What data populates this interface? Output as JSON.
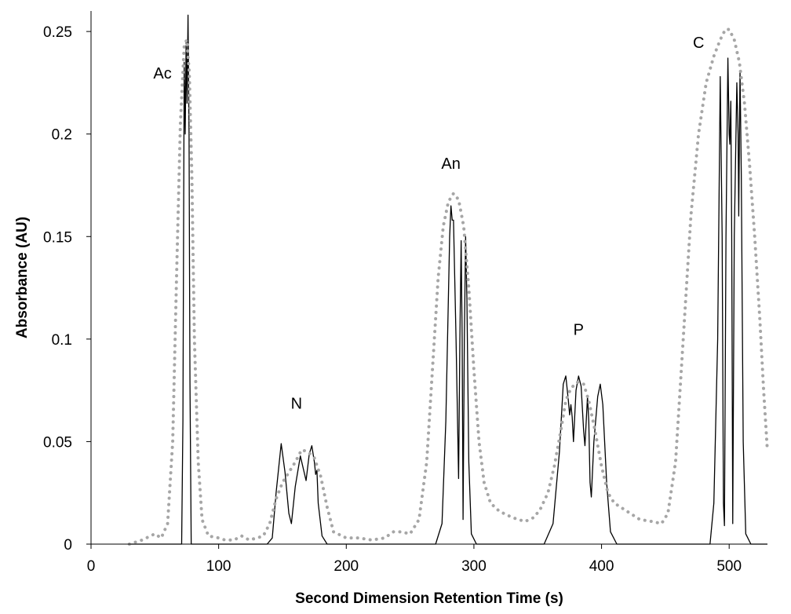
{
  "chart_data": {
    "type": "line",
    "title": "",
    "xlabel": "Second Dimension Retention Time (s)",
    "ylabel": "Absorbance (AU)",
    "xlim": [
      0,
      530
    ],
    "ylim": [
      0,
      0.26
    ],
    "x_ticks": [
      0,
      100,
      200,
      300,
      400,
      500
    ],
    "x_tick_labels": [
      "0",
      "100",
      "200",
      "300",
      "400",
      "500"
    ],
    "y_ticks": [
      0,
      0.05,
      0.1,
      0.15,
      0.2,
      0.25
    ],
    "y_tick_labels": [
      "0",
      "0.05",
      "0.1",
      "0.15",
      "0.2",
      "0.25"
    ],
    "grid": false,
    "legend": false,
    "annotations": [
      {
        "text": "Ac",
        "x": 56,
        "y": 0.227
      },
      {
        "text": "N",
        "x": 161,
        "y": 0.066
      },
      {
        "text": "An",
        "x": 282,
        "y": 0.183
      },
      {
        "text": "P",
        "x": 382,
        "y": 0.102
      },
      {
        "text": "C",
        "x": 476,
        "y": 0.242
      }
    ],
    "series": [
      {
        "style": "solid",
        "color": "#000000",
        "points": [
          [
            30,
            0
          ],
          [
            69,
            0
          ],
          [
            71,
            0
          ],
          [
            72,
            0.06
          ],
          [
            73,
            0.235
          ],
          [
            73.8,
            0.2
          ],
          [
            74.5,
            0.245
          ],
          [
            75.2,
            0.215
          ],
          [
            76,
            0.258
          ],
          [
            76.8,
            0.2
          ],
          [
            77.5,
            0.08
          ],
          [
            78.5,
            0
          ],
          [
            82,
            0
          ],
          [
            138,
            0
          ],
          [
            142,
            0.003
          ],
          [
            145,
            0.025
          ],
          [
            149,
            0.049
          ],
          [
            152,
            0.035
          ],
          [
            155,
            0.015
          ],
          [
            157,
            0.01
          ],
          [
            160,
            0.028
          ],
          [
            164,
            0.043
          ],
          [
            167,
            0.035
          ],
          [
            168.5,
            0.031
          ],
          [
            171,
            0.044
          ],
          [
            173,
            0.048
          ],
          [
            175,
            0.04
          ],
          [
            176,
            0.034
          ],
          [
            177,
            0.036
          ],
          [
            178,
            0.02
          ],
          [
            181,
            0.004
          ],
          [
            185,
            0
          ],
          [
            270,
            0
          ],
          [
            275,
            0.01
          ],
          [
            278,
            0.06
          ],
          [
            281,
            0.15
          ],
          [
            282,
            0.165
          ],
          [
            283,
            0.158
          ],
          [
            284,
            0.158
          ],
          [
            286,
            0.1
          ],
          [
            288,
            0.032
          ],
          [
            289,
            0.1
          ],
          [
            290,
            0.148
          ],
          [
            290.8,
            0.1
          ],
          [
            291.5,
            0.012
          ],
          [
            292.5,
            0.1
          ],
          [
            293.5,
            0.15
          ],
          [
            294.5,
            0.12
          ],
          [
            296,
            0.04
          ],
          [
            298,
            0.005
          ],
          [
            302,
            0
          ],
          [
            355,
            0
          ],
          [
            362,
            0.01
          ],
          [
            367,
            0.045
          ],
          [
            370,
            0.078
          ],
          [
            372,
            0.082
          ],
          [
            374,
            0.07
          ],
          [
            375,
            0.063
          ],
          [
            376,
            0.068
          ],
          [
            377,
            0.062
          ],
          [
            378,
            0.05
          ],
          [
            380,
            0.075
          ],
          [
            382,
            0.082
          ],
          [
            384,
            0.077
          ],
          [
            386,
            0.055
          ],
          [
            387,
            0.048
          ],
          [
            388,
            0.06
          ],
          [
            389,
            0.072
          ],
          [
            390,
            0.06
          ],
          [
            391,
            0.03
          ],
          [
            392,
            0.023
          ],
          [
            394,
            0.05
          ],
          [
            397,
            0.072
          ],
          [
            399,
            0.078
          ],
          [
            401,
            0.068
          ],
          [
            404,
            0.03
          ],
          [
            407,
            0.006
          ],
          [
            412,
            0
          ],
          [
            485,
            0
          ],
          [
            488,
            0.02
          ],
          [
            491,
            0.1
          ],
          [
            493,
            0.228
          ],
          [
            494.5,
            0.15
          ],
          [
            495.5,
            0.02
          ],
          [
            496.3,
            0.009
          ],
          [
            497.5,
            0.15
          ],
          [
            499,
            0.237
          ],
          [
            500,
            0.2
          ],
          [
            500.5,
            0.195
          ],
          [
            501.3,
            0.216
          ],
          [
            502,
            0.15
          ],
          [
            502.8,
            0.01
          ],
          [
            504,
            0.15
          ],
          [
            506,
            0.225
          ],
          [
            507,
            0.2
          ],
          [
            507.5,
            0.16
          ],
          [
            508.5,
            0.231
          ],
          [
            509.5,
            0.18
          ],
          [
            511,
            0.05
          ],
          [
            513,
            0.005
          ],
          [
            517,
            0
          ],
          [
            530,
            0
          ]
        ]
      },
      {
        "style": "dotted",
        "color": "#a6a6a6",
        "points": [
          [
            30,
            0
          ],
          [
            40,
            0.002
          ],
          [
            50,
            0.005
          ],
          [
            55,
            0.003
          ],
          [
            60,
            0.01
          ],
          [
            64,
            0.05
          ],
          [
            67,
            0.13
          ],
          [
            70,
            0.205
          ],
          [
            73,
            0.243
          ],
          [
            75,
            0.246
          ],
          [
            77,
            0.23
          ],
          [
            79,
            0.18
          ],
          [
            81,
            0.1
          ],
          [
            84,
            0.04
          ],
          [
            87,
            0.012
          ],
          [
            92,
            0.004
          ],
          [
            100,
            0.003
          ],
          [
            105,
            0.002
          ],
          [
            112,
            0.002
          ],
          [
            118,
            0.004
          ],
          [
            124,
            0.002
          ],
          [
            130,
            0.003
          ],
          [
            135,
            0.004
          ],
          [
            140,
            0.01
          ],
          [
            145,
            0.022
          ],
          [
            150,
            0.03
          ],
          [
            155,
            0.035
          ],
          [
            160,
            0.04
          ],
          [
            165,
            0.046
          ],
          [
            170,
            0.045
          ],
          [
            175,
            0.042
          ],
          [
            180,
            0.033
          ],
          [
            185,
            0.018
          ],
          [
            190,
            0.006
          ],
          [
            200,
            0.003
          ],
          [
            210,
            0.003
          ],
          [
            220,
            0.002
          ],
          [
            230,
            0.003
          ],
          [
            237,
            0.006
          ],
          [
            243,
            0.006
          ],
          [
            250,
            0.005
          ],
          [
            257,
            0.012
          ],
          [
            263,
            0.04
          ],
          [
            268,
            0.09
          ],
          [
            272,
            0.13
          ],
          [
            276,
            0.155
          ],
          [
            280,
            0.167
          ],
          [
            284,
            0.171
          ],
          [
            288,
            0.168
          ],
          [
            292,
            0.155
          ],
          [
            296,
            0.125
          ],
          [
            300,
            0.085
          ],
          [
            304,
            0.05
          ],
          [
            308,
            0.03
          ],
          [
            313,
            0.02
          ],
          [
            320,
            0.016
          ],
          [
            330,
            0.013
          ],
          [
            340,
            0.011
          ],
          [
            347,
            0.013
          ],
          [
            352,
            0.017
          ],
          [
            358,
            0.025
          ],
          [
            363,
            0.038
          ],
          [
            368,
            0.055
          ],
          [
            372,
            0.07
          ],
          [
            376,
            0.076
          ],
          [
            381,
            0.079
          ],
          [
            386,
            0.078
          ],
          [
            390,
            0.07
          ],
          [
            395,
            0.055
          ],
          [
            400,
            0.038
          ],
          [
            405,
            0.025
          ],
          [
            410,
            0.02
          ],
          [
            420,
            0.016
          ],
          [
            430,
            0.012
          ],
          [
            440,
            0.011
          ],
          [
            447,
            0.01
          ],
          [
            452,
            0.015
          ],
          [
            458,
            0.04
          ],
          [
            464,
            0.1
          ],
          [
            470,
            0.16
          ],
          [
            476,
            0.2
          ],
          [
            482,
            0.225
          ],
          [
            488,
            0.238
          ],
          [
            493,
            0.246
          ],
          [
            497,
            0.251
          ],
          [
            500,
            0.251
          ],
          [
            504,
            0.246
          ],
          [
            508,
            0.235
          ],
          [
            512,
            0.215
          ],
          [
            516,
            0.185
          ],
          [
            520,
            0.15
          ],
          [
            524,
            0.11
          ],
          [
            527,
            0.075
          ],
          [
            530,
            0.045
          ]
        ]
      }
    ]
  }
}
